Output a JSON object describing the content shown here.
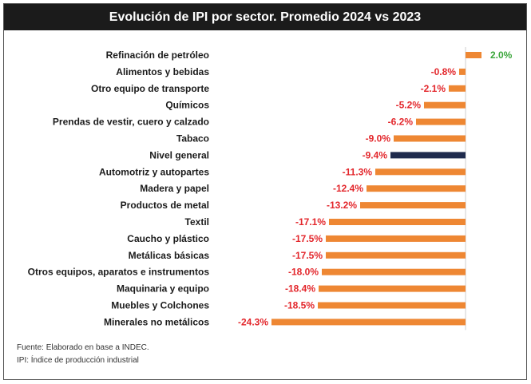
{
  "colors": {
    "bar": "#ee8733",
    "highlight_bar": "#1f2b4d",
    "negative_label": "#e3262b",
    "positive_label": "#3aa63a",
    "title_bg": "#1b1b1b"
  },
  "footer": {
    "source": "Fuente: Elaborado en base a INDEC.",
    "note": "IPI: Índice de producción industrial"
  },
  "chart_data": {
    "type": "bar",
    "orientation": "horizontal",
    "title": "Evolución de IPI por sector. Promedio 2024 vs 2023",
    "highlight": "Nivel general",
    "categories": [
      "Refinación de petróleo",
      "Alimentos y bebidas",
      "Otro equipo de transporte",
      "Químicos",
      "Prendas de vestir, cuero y calzado",
      "Tabaco",
      "Nivel general",
      "Automotriz y autopartes",
      "Madera y papel",
      "Productos de metal",
      "Textil",
      "Caucho y plástico",
      "Metálicas básicas",
      "Otros equipos, aparatos e instrumentos",
      "Maquinaria y equipo",
      "Muebles y Colchones",
      "Minerales no metálicos"
    ],
    "values": [
      2.0,
      -0.8,
      -2.1,
      -5.2,
      -6.2,
      -9.0,
      -9.4,
      -11.3,
      -12.4,
      -13.2,
      -17.1,
      -17.5,
      -17.5,
      -18.0,
      -18.4,
      -18.5,
      -24.3
    ],
    "labels": [
      "2.0%",
      "-0.8%",
      "-2.1%",
      "-5.2%",
      "-6.2%",
      "-9.0%",
      "-9.4%",
      "-11.3%",
      "-12.4%",
      "-13.2%",
      "-17.1%",
      "-17.5%",
      "-17.5%",
      "-18.0%",
      "-18.4%",
      "-18.5%",
      "-24.3%"
    ],
    "grid": false,
    "legend": "none"
  }
}
